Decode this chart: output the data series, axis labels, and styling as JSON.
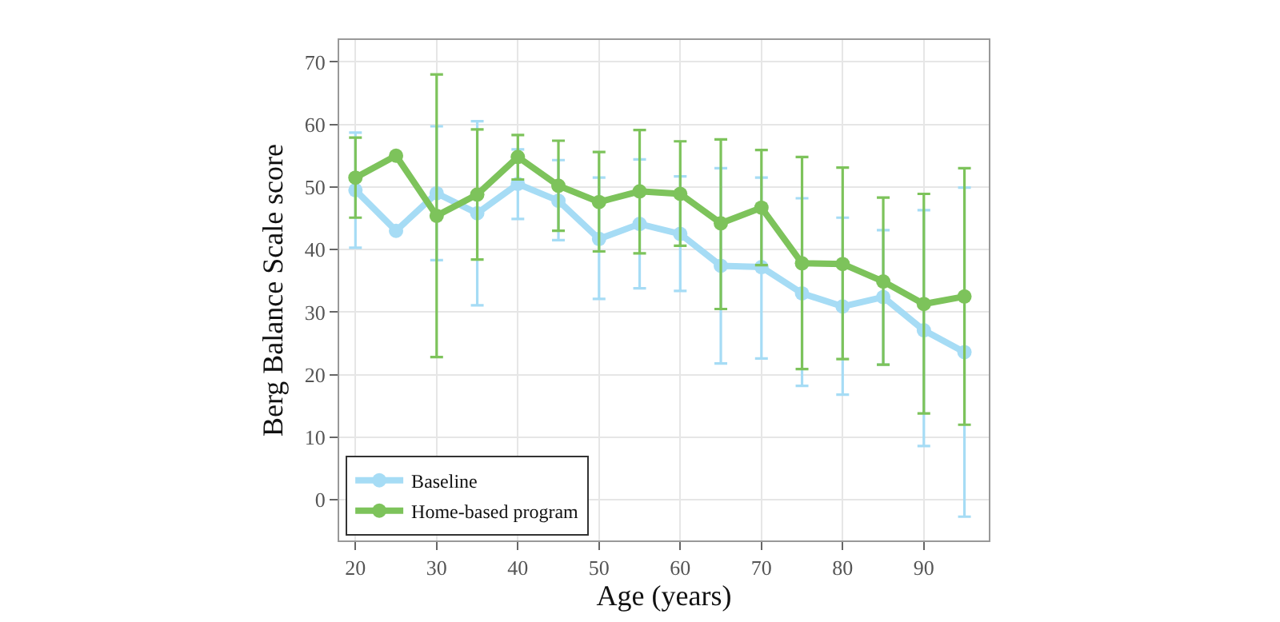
{
  "chart_data": {
    "type": "line",
    "xlabel": "Age (years)",
    "ylabel": "Berg Balance Scale score",
    "x": [
      20,
      25,
      30,
      35,
      40,
      45,
      50,
      55,
      60,
      65,
      70,
      75,
      80,
      85,
      90,
      95
    ],
    "series": [
      {
        "name": "Baseline",
        "color": "#a6dcf5",
        "values": [
          49.5,
          43,
          49,
          45.8,
          50.5,
          47.8,
          41.7,
          44.1,
          42.5,
          37.4,
          37.2,
          33,
          30.9,
          32.4,
          27.1,
          23.6
        ],
        "errors": [
          [
            40.3,
            58.7
          ],
          null,
          [
            38.3,
            59.7
          ],
          [
            31.1,
            60.5
          ],
          [
            44.9,
            56
          ],
          [
            41.5,
            54.3
          ],
          [
            32.1,
            51.5
          ],
          [
            33.8,
            54.4
          ],
          [
            33.4,
            51.7
          ],
          [
            21.8,
            53
          ],
          [
            22.6,
            51.5
          ],
          [
            18.2,
            48.2
          ],
          [
            16.8,
            45.1
          ],
          [
            21.6,
            43.1
          ],
          [
            8.6,
            46.3
          ],
          [
            -2.7,
            49.9
          ]
        ]
      },
      {
        "name": "Home-based program",
        "color": "#7dc35b",
        "values": [
          51.5,
          55,
          45.4,
          48.8,
          54.8,
          50.2,
          47.6,
          49.3,
          48.9,
          44.2,
          46.7,
          37.8,
          37.7,
          34.9,
          31.3,
          32.5
        ],
        "errors": [
          [
            45.1,
            57.9
          ],
          null,
          [
            22.8,
            68
          ],
          [
            38.4,
            59.2
          ],
          [
            51.2,
            58.3
          ],
          [
            43,
            57.4
          ],
          [
            39.7,
            55.6
          ],
          [
            39.4,
            59.1
          ],
          [
            40.6,
            57.3
          ],
          [
            30.5,
            57.6
          ],
          [
            37.5,
            55.9
          ],
          [
            20.9,
            54.8
          ],
          [
            22.5,
            53.1
          ],
          [
            21.6,
            48.3
          ],
          [
            13.8,
            48.9
          ],
          [
            12,
            53
          ]
        ]
      }
    ],
    "xlim": [
      18,
      98
    ],
    "xticks": [
      20,
      30,
      40,
      50,
      60,
      70,
      80,
      90
    ],
    "ylim": [
      -6.5,
      73.5
    ],
    "yticks": [
      0,
      10,
      20,
      30,
      40,
      50,
      60,
      70
    ],
    "grid": true,
    "legend": "bottom left",
    "marker": "circle",
    "line_style": "solid"
  }
}
